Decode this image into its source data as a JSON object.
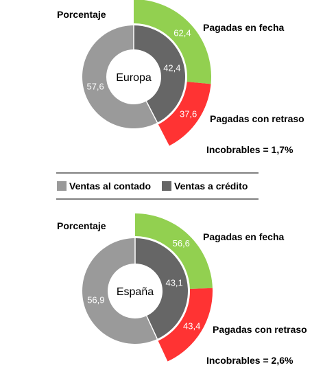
{
  "colors": {
    "cash": "#9a9a9a",
    "credit": "#666666",
    "on_time": "#92d050",
    "late": "#ff3333"
  },
  "legend": {
    "cash_label": "Ventas al contado",
    "credit_label": "Ventas a crédito"
  },
  "chart_data": [
    {
      "type": "pie",
      "title": "Europa",
      "corner_label": "Porcentaje",
      "inner_ring": [
        {
          "name": "Ventas al contado",
          "value": 57.6,
          "label": "57,6"
        },
        {
          "name": "Ventas a crédito",
          "value": 42.4,
          "label": "42,4"
        }
      ],
      "outer_ring": [
        {
          "name": "Pagadas en fecha",
          "value": 62.4,
          "label": "62,4"
        },
        {
          "name": "Pagadas con retraso",
          "value": 37.6,
          "label": "37,6"
        }
      ],
      "note": "Incobrables = 1,7%"
    },
    {
      "type": "pie",
      "title": "España",
      "corner_label": "Porcentaje",
      "inner_ring": [
        {
          "name": "Ventas al contado",
          "value": 56.9,
          "label": "56,9"
        },
        {
          "name": "Ventas a crédito",
          "value": 43.1,
          "label": "43,1"
        }
      ],
      "outer_ring": [
        {
          "name": "Pagadas en fecha",
          "value": 56.6,
          "label": "56,6"
        },
        {
          "name": "Pagadas con retraso",
          "value": 43.4,
          "label": "43,4"
        }
      ],
      "note": "Incobrables = 2,6%"
    }
  ]
}
